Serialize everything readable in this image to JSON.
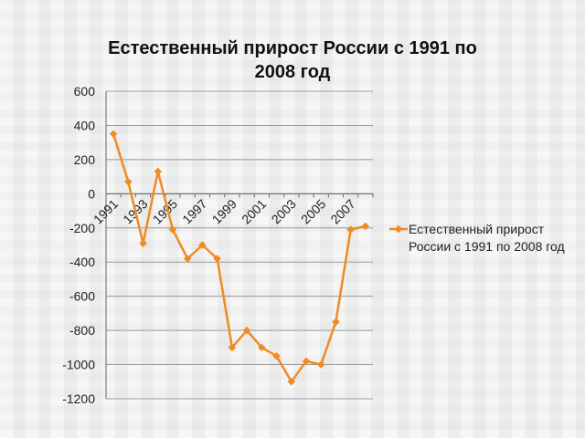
{
  "chart_data": {
    "type": "line",
    "title": "Естественный прирост России с 1991 по 2008 год",
    "x": [
      1991,
      1992,
      1993,
      1994,
      1995,
      1996,
      1997,
      1998,
      1999,
      2000,
      2001,
      2002,
      2003,
      2004,
      2005,
      2006,
      2007,
      2008
    ],
    "x_tick_labels": [
      "1991",
      "1993",
      "1995",
      "1997",
      "1999",
      "2001",
      "2003",
      "2005",
      "2007"
    ],
    "series": [
      {
        "name": "Естественный прирост России с 1991 по 2008 год",
        "values": [
          350,
          70,
          -290,
          130,
          -210,
          -380,
          -300,
          -380,
          -900,
          -800,
          -900,
          -950,
          -1100,
          -980,
          -1000,
          -750,
          -210,
          -190
        ]
      }
    ],
    "xlabel": "",
    "ylabel": "",
    "ylim": [
      -1200,
      600
    ],
    "y_ticks": [
      600,
      400,
      200,
      0,
      -200,
      -400,
      -600,
      -800,
      -1000,
      -1200
    ],
    "grid": true,
    "legend_position": "right",
    "colors": {
      "series": "#f08a24",
      "grid": "#9a9a9a",
      "axis": "#666666"
    }
  }
}
